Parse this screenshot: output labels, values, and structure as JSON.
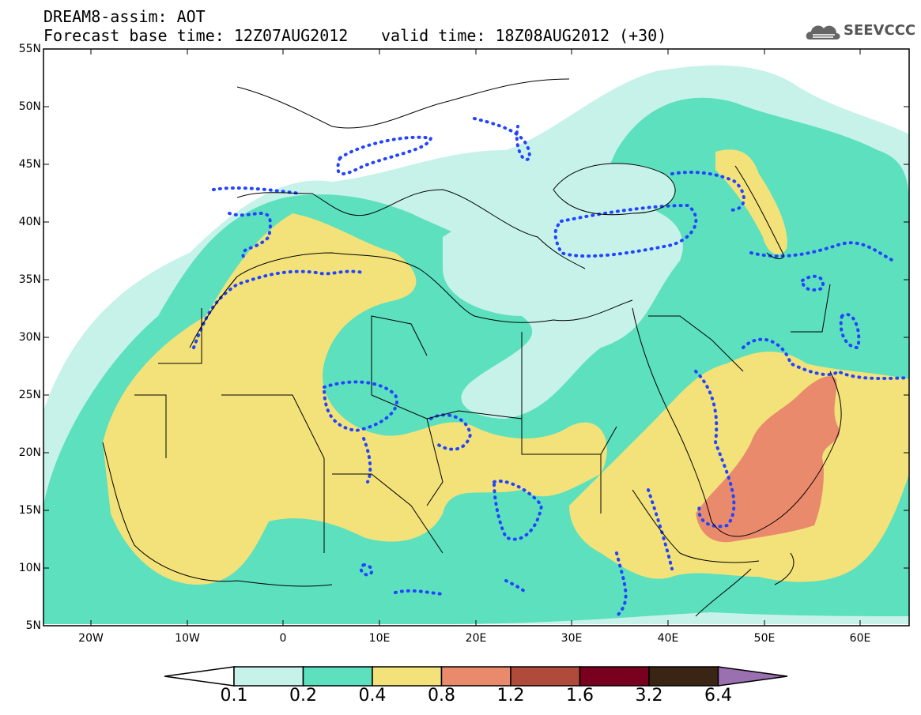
{
  "header": {
    "line1": "DREAM8-assim: AOT",
    "line2_left": "Forecast base time: 12Z07AUG2012",
    "line2_right": "valid time: 18Z08AUG2012 (+30)",
    "logo_text": "SEEVCCC",
    "logo_icon": "cloud-icon"
  },
  "map": {
    "lat_labels": [
      "55N",
      "50N",
      "45N",
      "40N",
      "35N",
      "30N",
      "25N",
      "20N",
      "15N",
      "10N",
      "5N"
    ],
    "lon_labels": [
      "20W",
      "10W",
      "0",
      "10E",
      "20E",
      "30E",
      "40E",
      "50E",
      "60E"
    ],
    "colors": {
      "c01": "#c6f2ea",
      "c02": "#5ce0bd",
      "c04": "#f3e27a",
      "c08": "#ea8a6c",
      "c12": "#b04a3a",
      "c16": "#7a0020",
      "c32": "#3a2414",
      "c64": "#9a70b0",
      "contour": "#2244ff",
      "border": "#000000"
    }
  },
  "colorbar": {
    "labels": [
      "0.1",
      "0.2",
      "0.4",
      "0.8",
      "1.2",
      "1.6",
      "3.2",
      "6.4"
    ]
  }
}
